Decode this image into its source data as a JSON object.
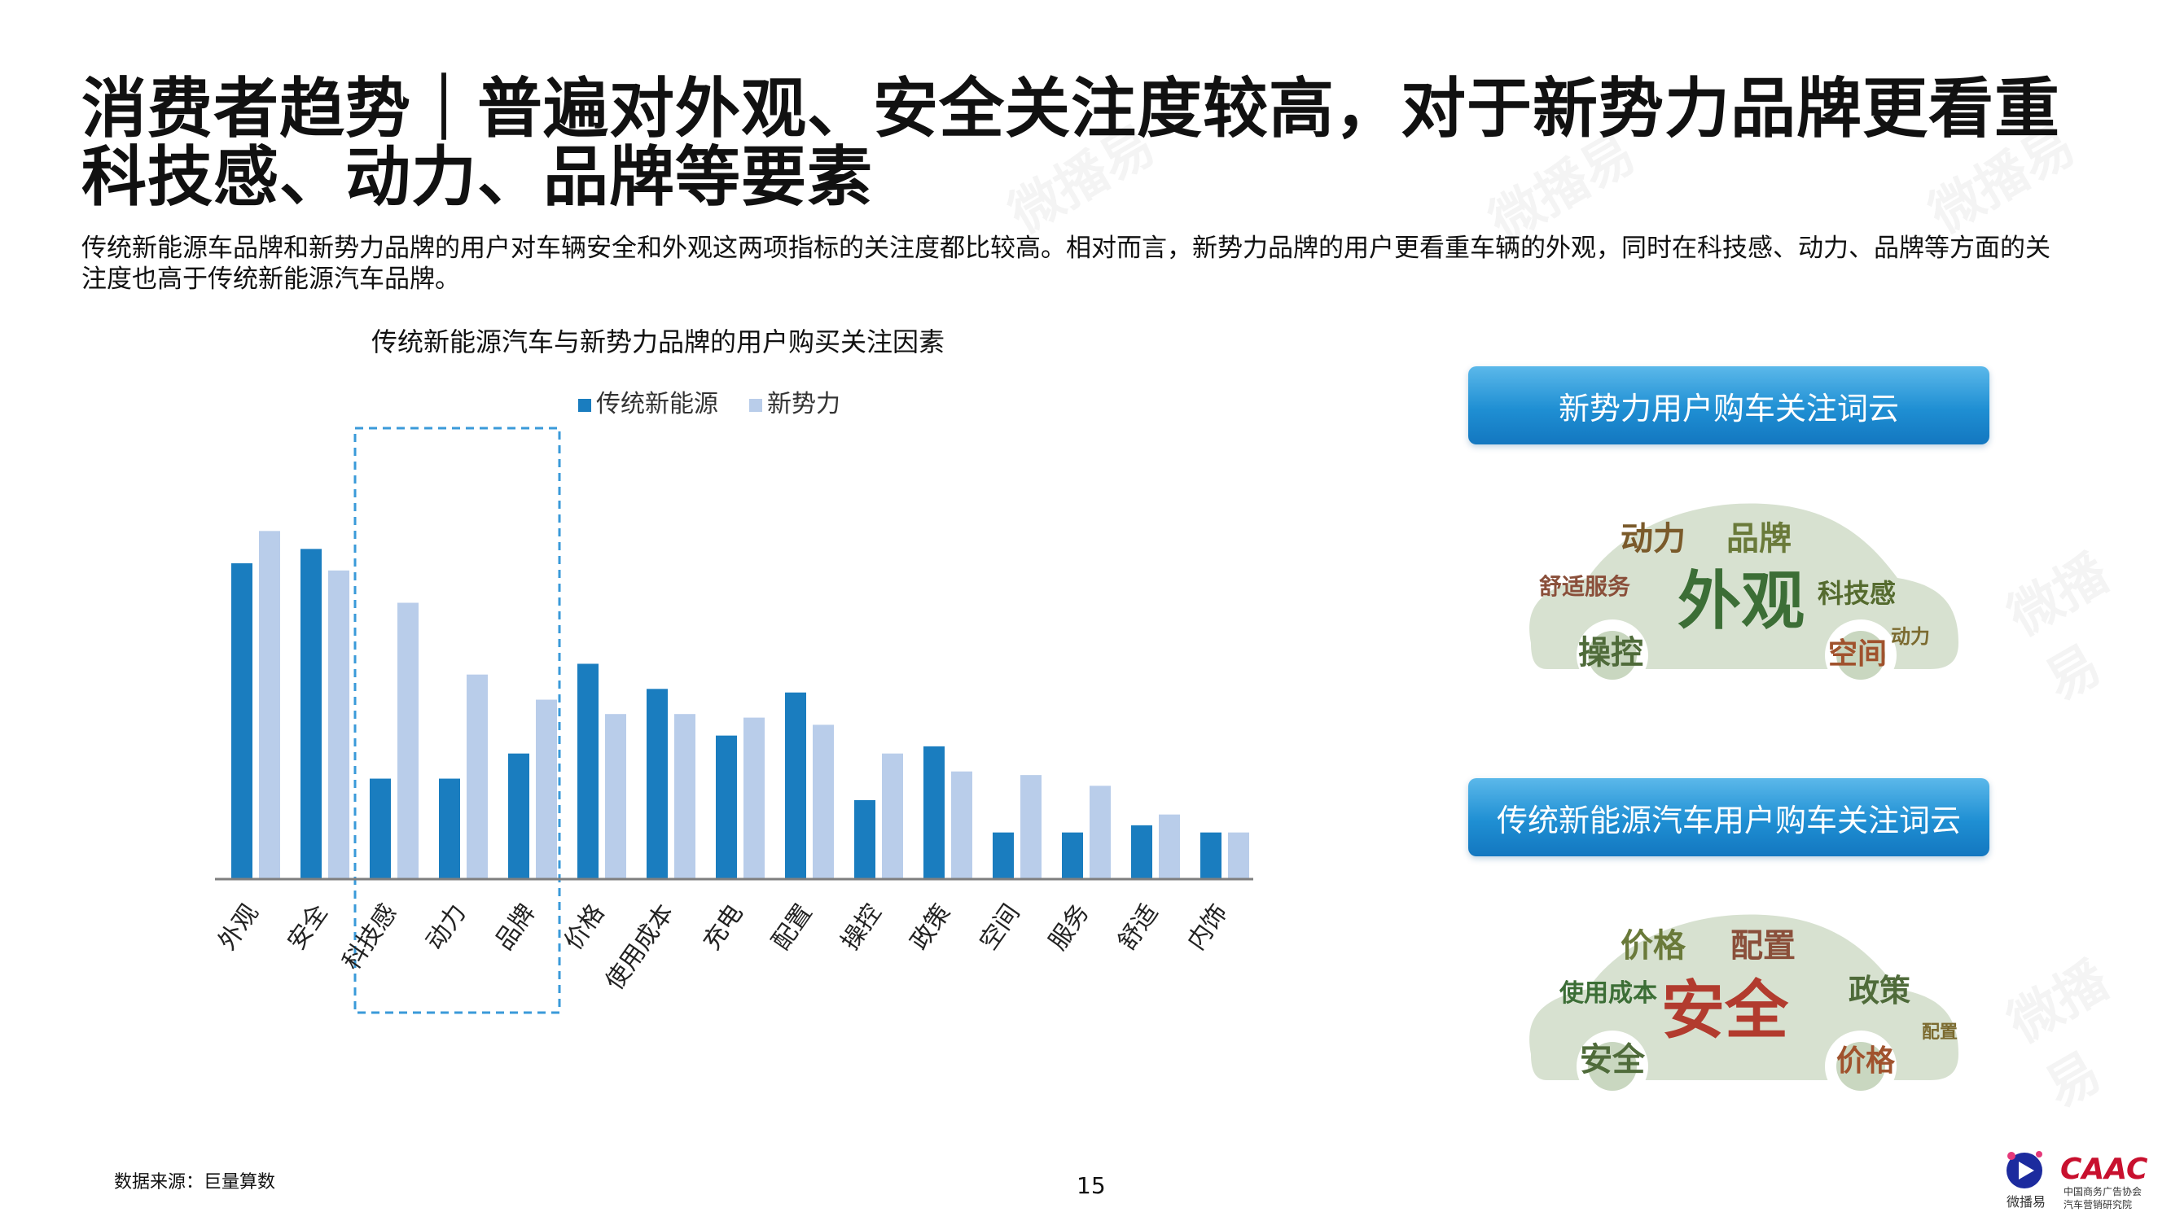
{
  "header": {
    "title": "消费者趋势｜普遍对外观、安全关注度较高，对于新势力品牌更看重科技感、动力、品牌等要素",
    "subtitle": "传统新能源车品牌和新势力品牌的用户对车辆安全和外观这两项指标的关注度都比较高。相对而言，新势力品牌的用户更看重车辆的外观，同时在科技感、动力、品牌等方面的关注度也高于传统新能源汽车品牌。"
  },
  "watermark": "微播易",
  "chart_data": {
    "type": "bar",
    "title": "传统新能源汽车与新势力品牌的用户购买关注因素",
    "categories": [
      "外观",
      "安全",
      "科技感",
      "动力",
      "品牌",
      "价格",
      "使用成本",
      "充电",
      "配置",
      "操控",
      "政策",
      "空间",
      "服务",
      "舒适",
      "内饰"
    ],
    "series": [
      {
        "name": "传统新能源",
        "color": "#1a7dbf",
        "values": [
          88,
          92,
          28,
          28,
          35,
          60,
          53,
          40,
          52,
          22,
          37,
          13,
          13,
          15,
          13
        ]
      },
      {
        "name": "新势力",
        "color": "#b9cdea",
        "values": [
          97,
          86,
          77,
          57,
          50,
          46,
          46,
          45,
          43,
          35,
          30,
          29,
          26,
          18,
          13
        ]
      }
    ],
    "ylim": [
      0,
      110
    ],
    "legend_position": "top-center",
    "highlight_categories": [
      "科技感",
      "动力",
      "品牌"
    ],
    "grid": false
  },
  "clouds": {
    "new_forces": {
      "title": "新势力用户购车关注词云",
      "words": [
        "外观",
        "动力",
        "品牌",
        "科技感",
        "舒适服务",
        "操控",
        "空间",
        "动力"
      ]
    },
    "traditional": {
      "title": "传统新能源汽车用户购车关注词云",
      "words": [
        "安全",
        "价格",
        "配置",
        "使用成本",
        "政策",
        "安全",
        "价格",
        "配置"
      ]
    }
  },
  "footer": {
    "source": "数据来源：巨量算数",
    "page_number": "15",
    "logo_weiboyi_label": "微播易",
    "logo_caac_label": "CAAC",
    "logo_caac_sub1": "中国商务广告协会",
    "logo_caac_sub2": "汽车营销研究院"
  }
}
